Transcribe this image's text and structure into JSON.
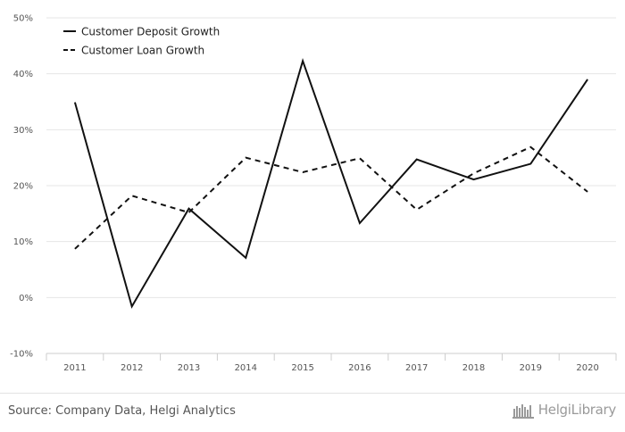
{
  "chart_data": {
    "type": "line",
    "categories": [
      "2011",
      "2012",
      "2013",
      "2014",
      "2015",
      "2016",
      "2017",
      "2018",
      "2019",
      "2020"
    ],
    "series": [
      {
        "name": "Customer Deposit Growth",
        "style": "solid",
        "color": "#111111",
        "values": [
          34.9,
          -1.6,
          15.9,
          7.1,
          42.3,
          13.3,
          24.7,
          21.1,
          23.9,
          39.0
        ]
      },
      {
        "name": "Customer Loan Growth",
        "style": "dashed",
        "color": "#111111",
        "values": [
          8.7,
          18.2,
          15.2,
          25.0,
          22.4,
          24.9,
          15.7,
          22.2,
          26.9,
          18.9
        ]
      }
    ],
    "yticks": [
      "50%",
      "40%",
      "30%",
      "20%",
      "10%",
      "0%",
      "-10%"
    ],
    "ylim": [
      -10,
      50
    ],
    "grid": true,
    "legend": "top-left"
  },
  "footer": {
    "source": "Source: Company Data, Helgi Analytics",
    "brand": "HelgiLibrary"
  }
}
